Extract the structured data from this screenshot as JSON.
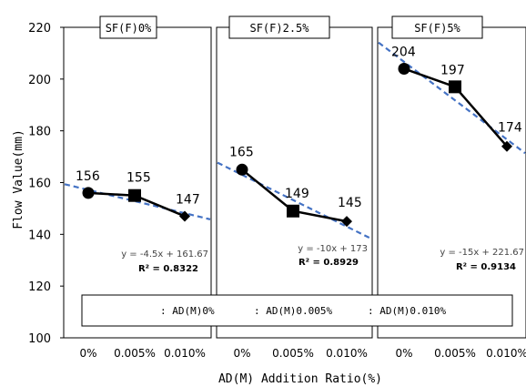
{
  "chart_data": {
    "type": "line",
    "ylabel": "Flow Value(mm)",
    "xlabel": "AD(M) Addition Ratio(%)",
    "ylim": [
      100,
      220
    ],
    "yticks": [
      100,
      120,
      140,
      160,
      180,
      200,
      220
    ],
    "grid": false,
    "categories": [
      "0%",
      "0.005%",
      "0.010%"
    ],
    "markers": [
      "circle",
      "square",
      "diamond"
    ],
    "legend": {
      "placement": "bottom-inside",
      "entries": [
        ": AD(M)0%",
        ": AD(M)0.005%",
        ": AD(M)0.010%"
      ]
    },
    "panels": [
      {
        "title": "SF(F)0%",
        "values": [
          156,
          155,
          147
        ],
        "labels": [
          "156",
          "155",
          "147"
        ],
        "trendline": {
          "slope": -4.5,
          "intercept": 161.67
        },
        "equation": "y = -4.5x + 161.67",
        "r2": "R² = 0.8322"
      },
      {
        "title": "SF(F)2.5%",
        "values": [
          165,
          149,
          145
        ],
        "labels": [
          "165",
          "149",
          "145"
        ],
        "trendline": {
          "slope": -10,
          "intercept": 173
        },
        "equation": "y = -10x + 173",
        "r2": "R² = 0.8929"
      },
      {
        "title": "SF(F)5%",
        "values": [
          204,
          197,
          174
        ],
        "labels": [
          "204",
          "197",
          "174"
        ],
        "trendline": {
          "slope": -15,
          "intercept": 221.67
        },
        "equation": "y = -15x + 221.67",
        "r2": "R² = 0.9134"
      }
    ],
    "colors": {
      "series": "#000000",
      "trendline": "#4472c4",
      "frame": "#000000"
    }
  }
}
